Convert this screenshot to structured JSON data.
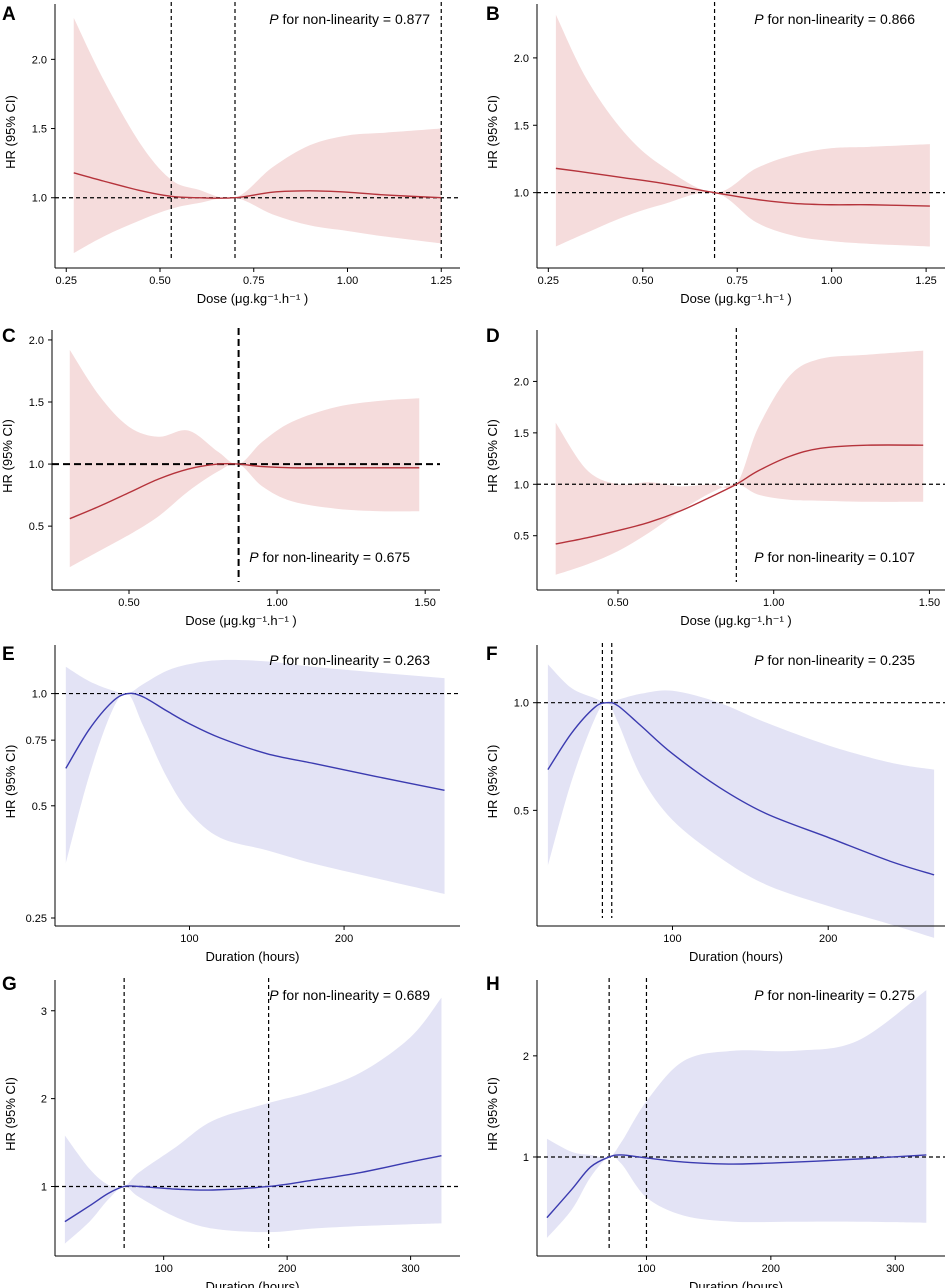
{
  "figure": {
    "theme": {
      "red_line": "#b5333b",
      "red_band": "#f5dcdc",
      "blue_line": "#3b3bb0",
      "blue_band": "#e3e3f5",
      "axis": "#000000"
    }
  },
  "chart_data": [
    {
      "panel": "A",
      "type": "line",
      "color": "red",
      "xlabel": "Dose (μg.kg⁻¹.h⁻¹ )",
      "ylabel": "HR (95% CI)",
      "xlim": [
        0.22,
        1.3
      ],
      "ylim": [
        0.55,
        2.4
      ],
      "yscale": "linear",
      "xticks": [
        0.25,
        0.5,
        0.75,
        1.0,
        1.25
      ],
      "xtick_labels": [
        "0.25",
        "0.50",
        "0.75",
        "1.00",
        "1.25"
      ],
      "yticks": [
        1.0,
        1.5,
        2.0
      ],
      "ytick_labels": [
        "1.0",
        "1.5",
        "2.0"
      ],
      "ref_hline": 1.0,
      "ref_vlines": [
        0.53,
        0.7,
        1.25
      ],
      "annotation": {
        "p": "P",
        "text": " for non-linearity = 0.877",
        "position": "top-right"
      },
      "x": [
        0.27,
        0.35,
        0.45,
        0.53,
        0.6,
        0.7,
        0.8,
        0.9,
        1.0,
        1.1,
        1.25
      ],
      "y": [
        1.18,
        1.12,
        1.05,
        1.01,
        1.0,
        1.0,
        1.04,
        1.05,
        1.04,
        1.02,
        1.0
      ],
      "lower": [
        0.6,
        0.72,
        0.84,
        0.92,
        0.96,
        1.0,
        0.88,
        0.8,
        0.76,
        0.72,
        0.67
      ],
      "upper": [
        2.3,
        1.85,
        1.38,
        1.13,
        1.06,
        1.0,
        1.22,
        1.38,
        1.45,
        1.47,
        1.5
      ]
    },
    {
      "panel": "B",
      "type": "line",
      "color": "red",
      "xlabel": "Dose (μg.kg⁻¹.h⁻¹ )",
      "ylabel": "HR (95% CI)",
      "xlim": [
        0.22,
        1.3
      ],
      "ylim": [
        0.5,
        2.4
      ],
      "yscale": "linear",
      "xticks": [
        0.25,
        0.5,
        0.75,
        1.0,
        1.25
      ],
      "xtick_labels": [
        "0.25",
        "0.50",
        "0.75",
        "1.00",
        "1.25"
      ],
      "yticks": [
        1.0,
        1.5,
        2.0
      ],
      "ytick_labels": [
        "1.0",
        "1.5",
        "2.0"
      ],
      "ref_hline": 1.0,
      "ref_vlines": [
        0.69
      ],
      "annotation": {
        "p": "P",
        "text": " for non-linearity = 0.866",
        "position": "top-right"
      },
      "x": [
        0.27,
        0.35,
        0.45,
        0.55,
        0.69,
        0.8,
        0.9,
        1.0,
        1.1,
        1.26
      ],
      "y": [
        1.18,
        1.15,
        1.11,
        1.07,
        1.0,
        0.95,
        0.92,
        0.91,
        0.91,
        0.9
      ],
      "lower": [
        0.6,
        0.7,
        0.82,
        0.91,
        1.0,
        0.78,
        0.68,
        0.64,
        0.62,
        0.6
      ],
      "upper": [
        2.32,
        1.85,
        1.45,
        1.2,
        1.0,
        1.18,
        1.28,
        1.33,
        1.34,
        1.36
      ]
    },
    {
      "panel": "C",
      "type": "line",
      "color": "red",
      "xlabel": "Dose (μg.kg⁻¹.h⁻¹ )",
      "ylabel": "HR (95% CI)",
      "xlim": [
        0.24,
        1.55
      ],
      "ylim": [
        0.05,
        2.08
      ],
      "yscale": "linear",
      "xticks": [
        0.5,
        1.0,
        1.5
      ],
      "xtick_labels": [
        "0.50",
        "1.00",
        "1.50"
      ],
      "yticks": [
        0.5,
        1.0,
        1.5,
        2.0
      ],
      "ytick_labels": [
        "0.5",
        "1.0",
        "1.5",
        "2.0"
      ],
      "ref_hline": 1.0,
      "ref_vlines": [
        0.87
      ],
      "dashed_bold": true,
      "annotation": {
        "p": "P",
        "text": " for non-linearity = 0.675",
        "position": "bottom-right"
      },
      "x": [
        0.3,
        0.4,
        0.5,
        0.6,
        0.7,
        0.8,
        0.87,
        0.95,
        1.05,
        1.2,
        1.35,
        1.48
      ],
      "y": [
        0.56,
        0.66,
        0.77,
        0.88,
        0.96,
        1.0,
        1.0,
        0.98,
        0.97,
        0.97,
        0.97,
        0.97
      ],
      "lower": [
        0.17,
        0.3,
        0.43,
        0.58,
        0.78,
        0.94,
        1.0,
        0.82,
        0.7,
        0.64,
        0.62,
        0.62
      ],
      "upper": [
        1.92,
        1.55,
        1.3,
        1.22,
        1.27,
        1.1,
        1.0,
        1.18,
        1.34,
        1.46,
        1.51,
        1.53
      ]
    },
    {
      "panel": "D",
      "type": "line",
      "color": "red",
      "xlabel": "Dose (μg.kg⁻¹.h⁻¹ )",
      "ylabel": "HR (95% CI)",
      "xlim": [
        0.24,
        1.55
      ],
      "ylim": [
        0.05,
        2.5
      ],
      "yscale": "linear",
      "xticks": [
        0.5,
        1.0,
        1.5
      ],
      "xtick_labels": [
        "0.50",
        "1.00",
        "1.50"
      ],
      "yticks": [
        0.5,
        1.0,
        1.5,
        2.0
      ],
      "ytick_labels": [
        "0.5",
        "1.0",
        "1.5",
        "2.0"
      ],
      "ref_hline": 1.0,
      "ref_vlines": [
        0.88
      ],
      "annotation": {
        "p": "P",
        "text": " for non-linearity = 0.107",
        "position": "bottom-right"
      },
      "x": [
        0.3,
        0.4,
        0.5,
        0.6,
        0.7,
        0.8,
        0.88,
        0.95,
        1.05,
        1.15,
        1.3,
        1.48
      ],
      "y": [
        0.42,
        0.48,
        0.55,
        0.63,
        0.74,
        0.88,
        1.0,
        1.13,
        1.27,
        1.35,
        1.38,
        1.38
      ],
      "lower": [
        0.12,
        0.22,
        0.35,
        0.53,
        0.74,
        0.92,
        1.0,
        0.9,
        0.85,
        0.84,
        0.83,
        0.83
      ],
      "upper": [
        1.6,
        1.14,
        1.0,
        1.02,
        0.98,
        1.0,
        1.0,
        1.55,
        2.05,
        2.22,
        2.26,
        2.3
      ]
    },
    {
      "panel": "E",
      "type": "line",
      "color": "blue",
      "xlabel": "Duration (hours)",
      "ylabel": "HR (95% CI)",
      "xlim": [
        13,
        275
      ],
      "ylim": [
        0.25,
        1.35
      ],
      "yscale": "log",
      "xticks": [
        100,
        200
      ],
      "xtick_labels": [
        "100",
        "200"
      ],
      "yticks": [
        0.25,
        0.5,
        0.75,
        1.0
      ],
      "ytick_labels": [
        "0.25",
        "0.5",
        "0.75",
        "1.0"
      ],
      "ref_hline": 1.0,
      "ref_vlines": [],
      "annotation": {
        "p": "P",
        "text": " for non-linearity = 0.263",
        "position": "top-right"
      },
      "x": [
        20,
        35,
        50,
        60,
        70,
        85,
        100,
        120,
        150,
        180,
        220,
        265
      ],
      "y": [
        0.63,
        0.8,
        0.95,
        1.0,
        0.98,
        0.9,
        0.83,
        0.76,
        0.69,
        0.65,
        0.6,
        0.55
      ],
      "lower": [
        0.35,
        0.6,
        0.9,
        1.0,
        0.82,
        0.6,
        0.48,
        0.41,
        0.38,
        0.35,
        0.32,
        0.29
      ],
      "upper": [
        1.18,
        1.08,
        1.02,
        1.0,
        1.06,
        1.15,
        1.2,
        1.23,
        1.22,
        1.18,
        1.14,
        1.1
      ]
    },
    {
      "panel": "F",
      "type": "line",
      "color": "blue",
      "xlabel": "Duration (hours)",
      "ylabel": "HR (95% CI)",
      "xlim": [
        13,
        275
      ],
      "ylim": [
        0.25,
        1.45
      ],
      "yscale": "log",
      "xticks": [
        100,
        200
      ],
      "xtick_labels": [
        "100",
        "200"
      ],
      "yticks": [
        0.5,
        1.0
      ],
      "ytick_labels": [
        "0.5",
        "1.0"
      ],
      "ref_hline": 1.0,
      "ref_vlines": [
        55,
        61
      ],
      "annotation": {
        "p": "P",
        "text": " for non-linearity = 0.235",
        "position": "top-right"
      },
      "x": [
        20,
        35,
        50,
        58,
        65,
        80,
        100,
        130,
        160,
        200,
        240,
        268
      ],
      "y": [
        0.65,
        0.82,
        0.97,
        1.0,
        0.98,
        0.86,
        0.72,
        0.58,
        0.49,
        0.42,
        0.36,
        0.33
      ],
      "lower": [
        0.35,
        0.6,
        0.9,
        1.0,
        0.88,
        0.62,
        0.47,
        0.37,
        0.31,
        0.27,
        0.24,
        0.22
      ],
      "upper": [
        1.28,
        1.1,
        1.03,
        1.0,
        1.02,
        1.06,
        1.08,
        1.0,
        0.88,
        0.76,
        0.68,
        0.65
      ]
    },
    {
      "panel": "G",
      "type": "line",
      "color": "blue",
      "xlabel": "Duration (hours)",
      "ylabel": "HR (95% CI)",
      "xlim": [
        12,
        340
      ],
      "ylim": [
        0.3,
        3.35
      ],
      "yscale": "linear",
      "xticks": [
        100,
        200,
        300
      ],
      "xtick_labels": [
        "100",
        "200",
        "300"
      ],
      "yticks": [
        1,
        2,
        3
      ],
      "ytick_labels": [
        "1",
        "2",
        "3"
      ],
      "ref_hline": 1.0,
      "ref_vlines": [
        68,
        185
      ],
      "annotation": {
        "p": "P",
        "text": " for non-linearity = 0.689",
        "position": "top-right"
      },
      "x": [
        20,
        40,
        55,
        68,
        80,
        110,
        140,
        185,
        220,
        260,
        300,
        325
      ],
      "y": [
        0.6,
        0.78,
        0.92,
        1.0,
        1.0,
        0.97,
        0.96,
        1.0,
        1.07,
        1.16,
        1.28,
        1.35
      ],
      "lower": [
        0.35,
        0.6,
        0.85,
        1.0,
        0.88,
        0.65,
        0.52,
        0.48,
        0.52,
        0.55,
        0.57,
        0.58
      ],
      "upper": [
        1.58,
        1.2,
        1.02,
        1.0,
        1.16,
        1.45,
        1.75,
        1.95,
        2.08,
        2.3,
        2.7,
        3.15
      ]
    },
    {
      "panel": "H",
      "type": "line",
      "color": "blue",
      "xlabel": "Duration (hours)",
      "ylabel": "HR (95% CI)",
      "xlim": [
        12,
        340
      ],
      "ylim": [
        0.1,
        2.75
      ],
      "yscale": "linear",
      "xticks": [
        100,
        200,
        300
      ],
      "xtick_labels": [
        "100",
        "200",
        "300"
      ],
      "yticks": [
        1,
        2
      ],
      "ytick_labels": [
        "1",
        "2"
      ],
      "ref_hline": 1.0,
      "ref_vlines": [
        70,
        100
      ],
      "annotation": {
        "p": "P",
        "text": " for non-linearity = 0.275",
        "position": "top-right"
      },
      "x": [
        20,
        40,
        55,
        70,
        80,
        100,
        130,
        170,
        220,
        270,
        325
      ],
      "y": [
        0.4,
        0.68,
        0.9,
        1.0,
        1.02,
        0.99,
        0.95,
        0.93,
        0.95,
        0.98,
        1.02
      ],
      "lower": [
        0.2,
        0.48,
        0.8,
        1.0,
        0.93,
        0.6,
        0.42,
        0.36,
        0.36,
        0.36,
        0.35
      ],
      "upper": [
        1.18,
        1.05,
        1.02,
        1.0,
        1.15,
        1.55,
        1.95,
        2.05,
        2.05,
        2.15,
        2.65
      ]
    }
  ]
}
